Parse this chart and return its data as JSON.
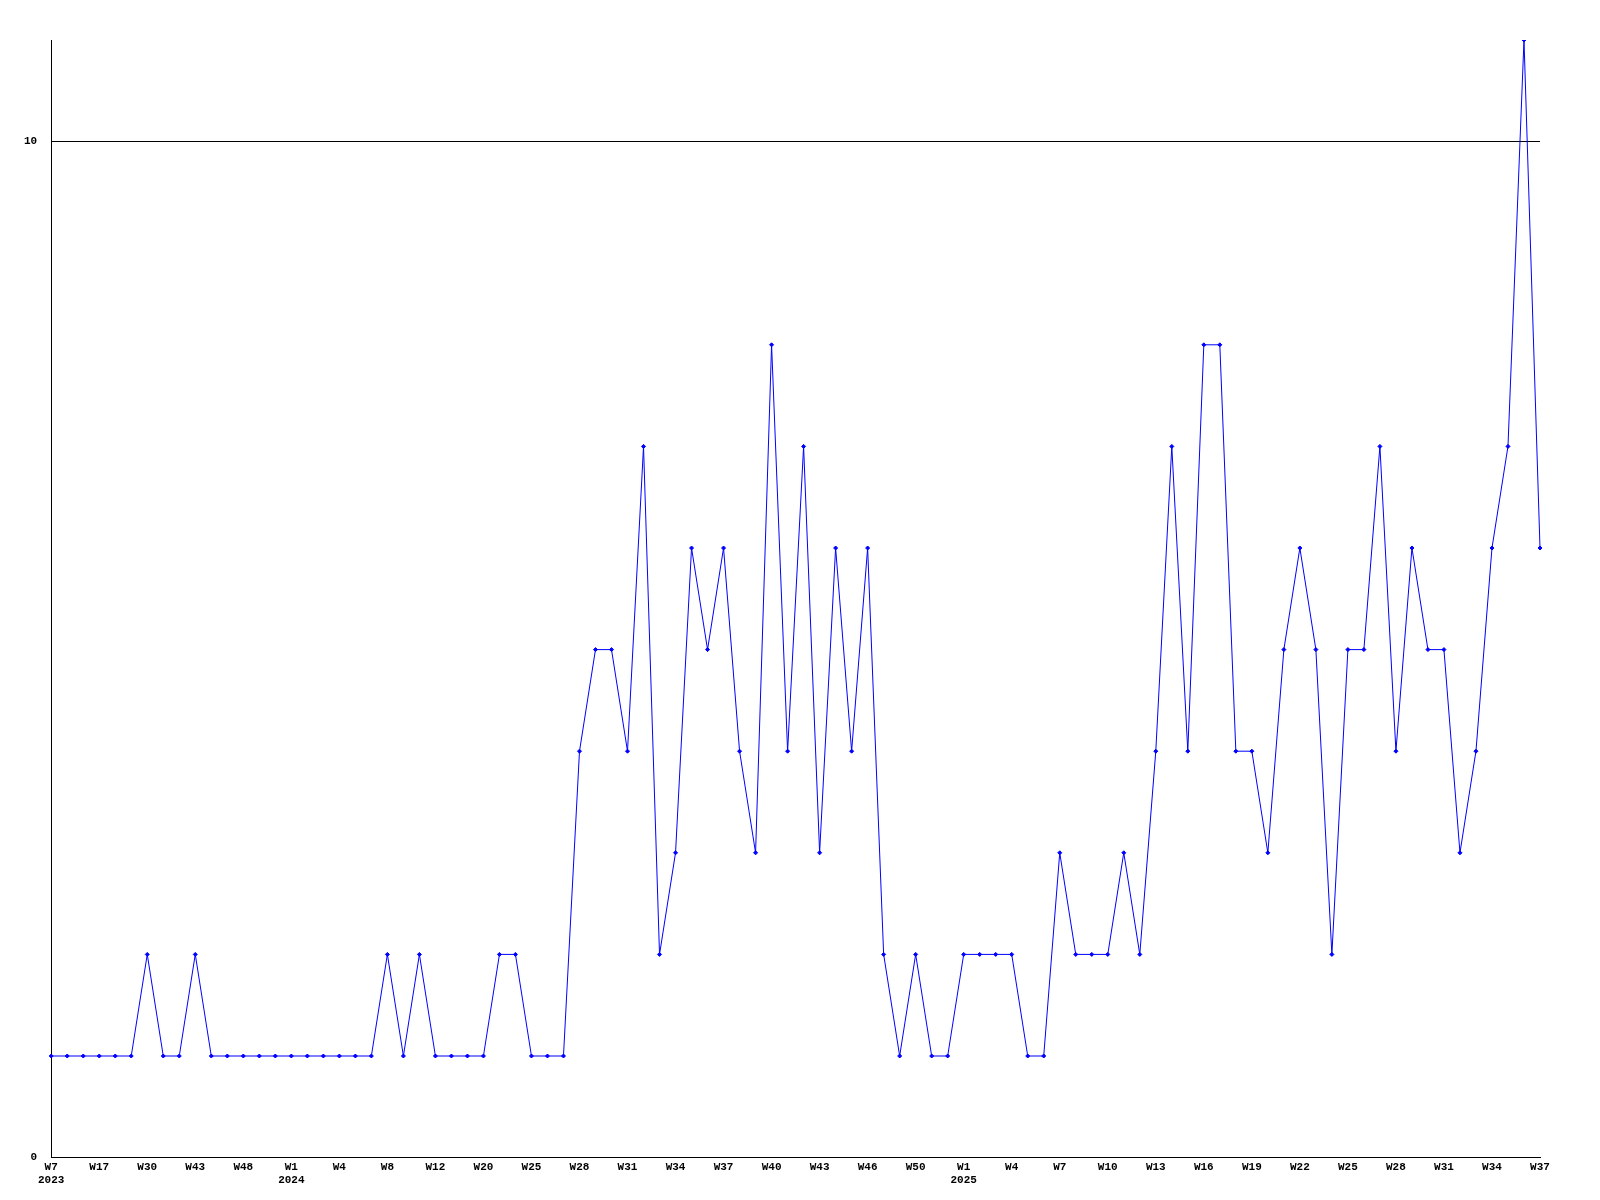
{
  "chart_data": {
    "type": "line",
    "categories": [
      "W7\n2023",
      null,
      null,
      "W17",
      null,
      null,
      "W30",
      null,
      null,
      "W43",
      null,
      null,
      "W48",
      null,
      null,
      "W1\n2024",
      null,
      null,
      "W4",
      null,
      null,
      "W8",
      null,
      null,
      "W12",
      null,
      null,
      "W20",
      null,
      null,
      "W25",
      null,
      null,
      "W28",
      null,
      null,
      "W31",
      null,
      null,
      "W34",
      null,
      null,
      "W37",
      null,
      null,
      "W40",
      null,
      null,
      "W43",
      null,
      null,
      "W46",
      null,
      null,
      "W50",
      null,
      null,
      "W1\n2025",
      null,
      null,
      "W4",
      null,
      null,
      "W7",
      null,
      null,
      "W10",
      null,
      null,
      "W13",
      null,
      null,
      "W16",
      null,
      null,
      "W19",
      null,
      null,
      "W22",
      null,
      null,
      "W25",
      null,
      null,
      "W28",
      null,
      null,
      "W31",
      null,
      null,
      "W34",
      null,
      null,
      "W37"
    ],
    "series": [
      {
        "color": "#0000ff",
        "values": [
          1,
          1,
          1,
          1,
          1,
          1,
          2,
          1,
          1,
          2,
          1,
          1,
          1,
          1,
          1,
          1,
          1,
          1,
          1,
          1,
          1,
          2,
          1,
          2,
          1,
          1,
          1,
          1,
          2,
          2,
          1,
          1,
          1,
          4,
          5,
          5,
          4,
          7,
          2,
          3,
          6,
          5,
          6,
          4,
          3,
          8,
          4,
          7,
          3,
          6,
          4,
          6,
          2,
          1,
          2,
          1,
          1,
          2,
          2,
          2,
          2,
          1,
          1,
          3,
          2,
          2,
          2,
          3,
          2,
          4,
          7,
          4,
          8,
          8,
          4,
          4,
          3,
          5,
          6,
          5,
          2,
          5,
          5,
          7,
          4,
          6,
          5,
          5,
          3,
          4,
          6,
          7,
          11,
          6
        ]
      }
    ],
    "ylim": [
      0,
      11
    ],
    "yticks": [
      0,
      10
    ],
    "grid": "y",
    "legend": false,
    "marker": "diamond",
    "line_style": "solid"
  }
}
